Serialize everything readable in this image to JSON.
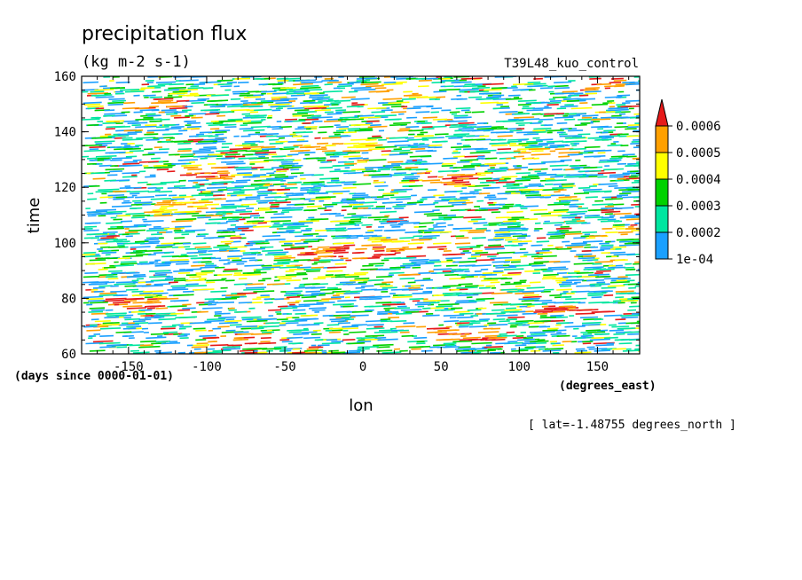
{
  "chart_data": {
    "type": "heatmap",
    "title": "precipitation flux",
    "subtitle": "(kg m-2 s-1)",
    "run_label": "T39L48_kuo_control",
    "xlabel": "lon",
    "ylabel": "time",
    "x_units": "(degrees_east)",
    "y_units": "(days since 0000-01-01)",
    "slice_label": "[ lat=-1.48755 degrees_north ]",
    "xlim": [
      -180,
      177
    ],
    "ylim": [
      60,
      160
    ],
    "x_ticks": [
      -150,
      -100,
      -50,
      0,
      50,
      100,
      150
    ],
    "x_tick_labels": [
      "-150",
      "-100",
      "-50",
      "0",
      "50",
      "100",
      "150"
    ],
    "y_ticks": [
      60,
      80,
      100,
      120,
      140,
      160
    ],
    "y_tick_labels": [
      "60",
      "80",
      "100",
      "120",
      "140",
      "160"
    ],
    "colorbar": {
      "levels": [
        0.0001,
        0.0002,
        0.0003,
        0.0004,
        0.0005,
        0.0006
      ],
      "labels": [
        "1e-04",
        "0.0002",
        "0.0003",
        "0.0004",
        "0.0005",
        "0.0006"
      ],
      "colors": [
        "#1aa0ff",
        "#00e6a0",
        "#00d200",
        "#ffff00",
        "#ffa000",
        "#e61a1a"
      ],
      "extend": "max"
    },
    "streaks": [
      {
        "lon": 10,
        "t": 97,
        "len": 90,
        "level": 5
      },
      {
        "lon": -20,
        "t": 96,
        "len": 70,
        "level": 5
      },
      {
        "lon": 30,
        "t": 99,
        "len": 60,
        "level": 4
      },
      {
        "lon": -120,
        "t": 113,
        "len": 40,
        "level": 4
      },
      {
        "lon": -60,
        "t": 88,
        "len": 120,
        "level": 3
      },
      {
        "lon": 80,
        "t": 86,
        "len": 90,
        "level": 3
      },
      {
        "lon": -150,
        "t": 78,
        "len": 40,
        "level": 5
      },
      {
        "lon": 130,
        "t": 76,
        "len": 50,
        "level": 5
      },
      {
        "lon": -110,
        "t": 125,
        "len": 50,
        "level": 5
      },
      {
        "lon": 50,
        "t": 123,
        "len": 40,
        "level": 5
      },
      {
        "lon": -20,
        "t": 135,
        "len": 50,
        "level": 4
      },
      {
        "lon": 110,
        "t": 132,
        "len": 40,
        "level": 4
      },
      {
        "lon": -140,
        "t": 150,
        "len": 40,
        "level": 5
      },
      {
        "lon": 20,
        "t": 155,
        "len": 50,
        "level": 4
      },
      {
        "lon": 150,
        "t": 157,
        "len": 30,
        "level": 5
      },
      {
        "lon": -80,
        "t": 65,
        "len": 50,
        "level": 5
      },
      {
        "lon": 60,
        "t": 67,
        "len": 50,
        "level": 5
      },
      {
        "lon": 160,
        "t": 104,
        "len": 30,
        "level": 4
      },
      {
        "lon": -170,
        "t": 92,
        "len": 20,
        "level": 3
      },
      {
        "lon": 100,
        "t": 110,
        "len": 40,
        "level": 3
      }
    ]
  }
}
